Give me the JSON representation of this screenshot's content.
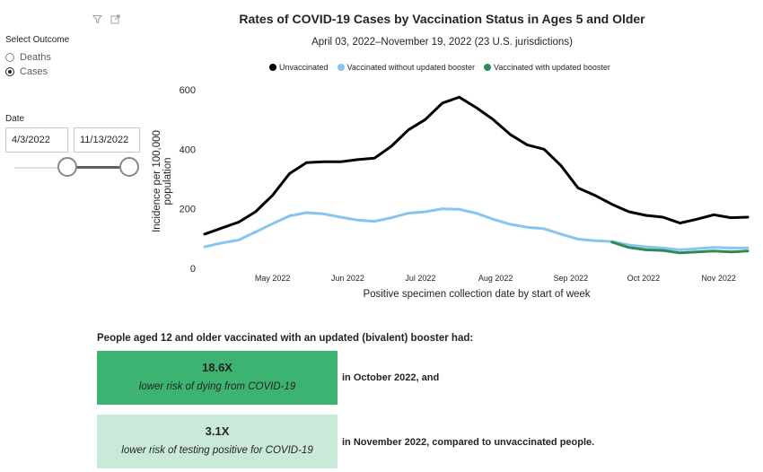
{
  "filters": {
    "outcome_title": "Select Outcome",
    "options": [
      {
        "label": "Deaths",
        "selected": false
      },
      {
        "label": "Cases",
        "selected": true
      }
    ],
    "date_title": "Date",
    "start_date": "4/3/2022",
    "end_date": "11/13/2022",
    "icons": [
      "filter-icon",
      "expand-icon"
    ]
  },
  "chart_data": {
    "type": "line",
    "title": "Rates of COVID-19 Cases by Vaccination Status in Ages 5 and Older",
    "subtitle": "April 03, 2022–November 19, 2022 (23 U.S. jurisdictions)",
    "xlabel": "Positive specimen collection date by start of week",
    "ylabel": "Incidence per 100,000 population",
    "ylim": [
      0,
      600
    ],
    "yticks": [
      0,
      200,
      400,
      600
    ],
    "grid": false,
    "legend_position": "top",
    "x": [
      "2022-04-03",
      "2022-04-10",
      "2022-04-17",
      "2022-04-24",
      "2022-05-01",
      "2022-05-08",
      "2022-05-15",
      "2022-05-22",
      "2022-05-29",
      "2022-06-05",
      "2022-06-12",
      "2022-06-19",
      "2022-06-26",
      "2022-07-03",
      "2022-07-10",
      "2022-07-17",
      "2022-07-24",
      "2022-07-31",
      "2022-08-07",
      "2022-08-14",
      "2022-08-21",
      "2022-08-28",
      "2022-09-04",
      "2022-09-11",
      "2022-09-18",
      "2022-09-25",
      "2022-10-02",
      "2022-10-09",
      "2022-10-16",
      "2022-10-23",
      "2022-10-30",
      "2022-11-06",
      "2022-11-13"
    ],
    "xticks": [
      {
        "label": "May 2022",
        "date": "2022-05-01"
      },
      {
        "label": "Jun 2022",
        "date": "2022-06-01"
      },
      {
        "label": "Jul 2022",
        "date": "2022-07-01"
      },
      {
        "label": "Aug 2022",
        "date": "2022-08-01"
      },
      {
        "label": "Sep 2022",
        "date": "2022-09-01"
      },
      {
        "label": "Oct 2022",
        "date": "2022-10-01"
      },
      {
        "label": "Nov 2022",
        "date": "2022-11-01"
      }
    ],
    "series": [
      {
        "name": "Unvaccinated",
        "color": "#000000",
        "values": [
          115,
          135,
          155,
          190,
          245,
          318,
          355,
          358,
          358,
          365,
          370,
          410,
          465,
          500,
          555,
          575,
          540,
          500,
          450,
          415,
          400,
          345,
          270,
          245,
          215,
          190,
          178,
          172,
          152,
          165,
          180,
          170,
          172
        ]
      },
      {
        "name": "Vaccinated without updated booster",
        "color": "#87c5f0",
        "values": [
          72,
          85,
          95,
          122,
          150,
          176,
          187,
          183,
          172,
          162,
          158,
          170,
          185,
          190,
          200,
          198,
          185,
          165,
          148,
          138,
          133,
          115,
          98,
          93,
          90,
          78,
          72,
          68,
          62,
          66,
          70,
          68,
          68
        ]
      },
      {
        "name": "Vaccinated with updated booster",
        "color": "#2e8b57",
        "values": [
          null,
          null,
          null,
          null,
          null,
          null,
          null,
          null,
          null,
          null,
          null,
          null,
          null,
          null,
          null,
          null,
          null,
          null,
          null,
          null,
          null,
          null,
          null,
          null,
          88,
          70,
          62,
          60,
          52,
          55,
          58,
          55,
          58
        ]
      }
    ]
  },
  "summary": {
    "heading": "People aged 12 and older vaccinated with an updated (bivalent) booster had:",
    "cards": [
      {
        "value": "18.6X",
        "desc": "lower risk of dying from COVID-19",
        "note": "in October 2022, and",
        "color": "#3cb371"
      },
      {
        "value": "3.1X",
        "desc": "lower risk of testing positive for COVID-19",
        "note": "in November 2022, compared to unvaccinated people.",
        "color": "#c9ead8"
      }
    ]
  }
}
